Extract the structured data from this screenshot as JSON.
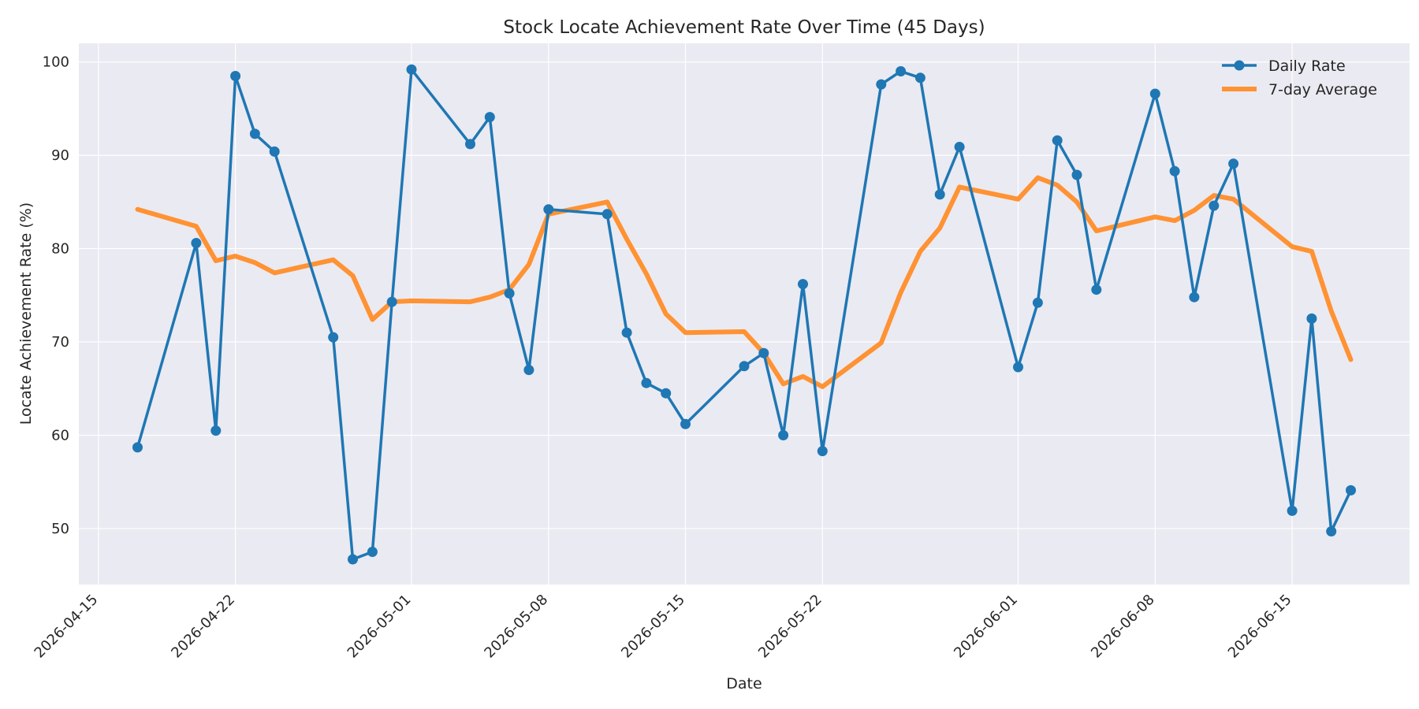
{
  "chart_data": {
    "type": "line",
    "title": "Stock Locate Achievement Rate Over Time (45 Days)",
    "xlabel": "Date",
    "ylabel": "Locate Achievement Rate (%)",
    "x_tick_labels": [
      "2026-04-15",
      "2026-04-22",
      "2026-05-01",
      "2026-05-08",
      "2026-05-15",
      "2026-05-22",
      "2026-06-01",
      "2026-06-08",
      "2026-06-15"
    ],
    "y_ticks": [
      50,
      60,
      70,
      80,
      90,
      100
    ],
    "xlim": [
      "2026-04-14",
      "2026-06-21"
    ],
    "ylim": [
      44,
      102
    ],
    "grid": true,
    "legend_position": "top-right",
    "series": [
      {
        "name": "Daily Rate",
        "color": "#1f77b4",
        "marker": "circle",
        "x": [
          "2026-04-17",
          "2026-04-20",
          "2026-04-21",
          "2026-04-22",
          "2026-04-23",
          "2026-04-24",
          "2026-04-27",
          "2026-04-28",
          "2026-04-29",
          "2026-04-30",
          "2026-05-01",
          "2026-05-04",
          "2026-05-05",
          "2026-05-06",
          "2026-05-07",
          "2026-05-08",
          "2026-05-11",
          "2026-05-12",
          "2026-05-13",
          "2026-05-14",
          "2026-05-15",
          "2026-05-18",
          "2026-05-19",
          "2026-05-20",
          "2026-05-21",
          "2026-05-22",
          "2026-05-25",
          "2026-05-26",
          "2026-05-27",
          "2026-05-28",
          "2026-05-29",
          "2026-06-01",
          "2026-06-02",
          "2026-06-03",
          "2026-06-04",
          "2026-06-05",
          "2026-06-08",
          "2026-06-09",
          "2026-06-10",
          "2026-06-11",
          "2026-06-12",
          "2026-06-15",
          "2026-06-16",
          "2026-06-17",
          "2026-06-18"
        ],
        "values": [
          58.7,
          80.6,
          60.5,
          98.5,
          92.3,
          90.4,
          70.5,
          46.7,
          47.5,
          74.3,
          99.2,
          91.2,
          94.1,
          75.2,
          67.0,
          84.2,
          83.7,
          71.0,
          65.6,
          64.5,
          61.2,
          67.4,
          68.8,
          60.0,
          76.2,
          58.3,
          97.6,
          99.0,
          98.3,
          85.8,
          90.9,
          67.3,
          74.2,
          91.6,
          87.9,
          75.6,
          96.6,
          88.3,
          74.8,
          84.6,
          89.1,
          51.9,
          72.5,
          49.7,
          54.1
        ]
      },
      {
        "name": "7-day Average",
        "color": "#ff9233",
        "marker": "none",
        "x": [
          "2026-04-17",
          "2026-04-20",
          "2026-04-21",
          "2026-04-22",
          "2026-04-23",
          "2026-04-24",
          "2026-04-27",
          "2026-04-28",
          "2026-04-29",
          "2026-04-30",
          "2026-05-01",
          "2026-05-04",
          "2026-05-05",
          "2026-05-06",
          "2026-05-07",
          "2026-05-08",
          "2026-05-11",
          "2026-05-12",
          "2026-05-13",
          "2026-05-14",
          "2026-05-15",
          "2026-05-18",
          "2026-05-19",
          "2026-05-20",
          "2026-05-21",
          "2026-05-22",
          "2026-05-25",
          "2026-05-26",
          "2026-05-27",
          "2026-05-28",
          "2026-05-29",
          "2026-06-01",
          "2026-06-02",
          "2026-06-03",
          "2026-06-04",
          "2026-06-05",
          "2026-06-08",
          "2026-06-09",
          "2026-06-10",
          "2026-06-11",
          "2026-06-12",
          "2026-06-15",
          "2026-06-16",
          "2026-06-17",
          "2026-06-18"
        ],
        "values": [
          84.2,
          82.4,
          78.7,
          79.2,
          78.5,
          77.4,
          78.8,
          77.1,
          72.4,
          74.3,
          74.4,
          74.3,
          74.8,
          75.6,
          78.3,
          83.7,
          85.0,
          81.0,
          77.3,
          73.0,
          71.0,
          71.1,
          68.8,
          65.5,
          66.3,
          65.2,
          69.9,
          75.3,
          79.7,
          82.2,
          86.6,
          85.3,
          87.6,
          86.8,
          85.0,
          81.9,
          83.4,
          83.0,
          84.1,
          85.7,
          85.3,
          80.2,
          79.7,
          73.3,
          68.1
        ]
      }
    ]
  }
}
